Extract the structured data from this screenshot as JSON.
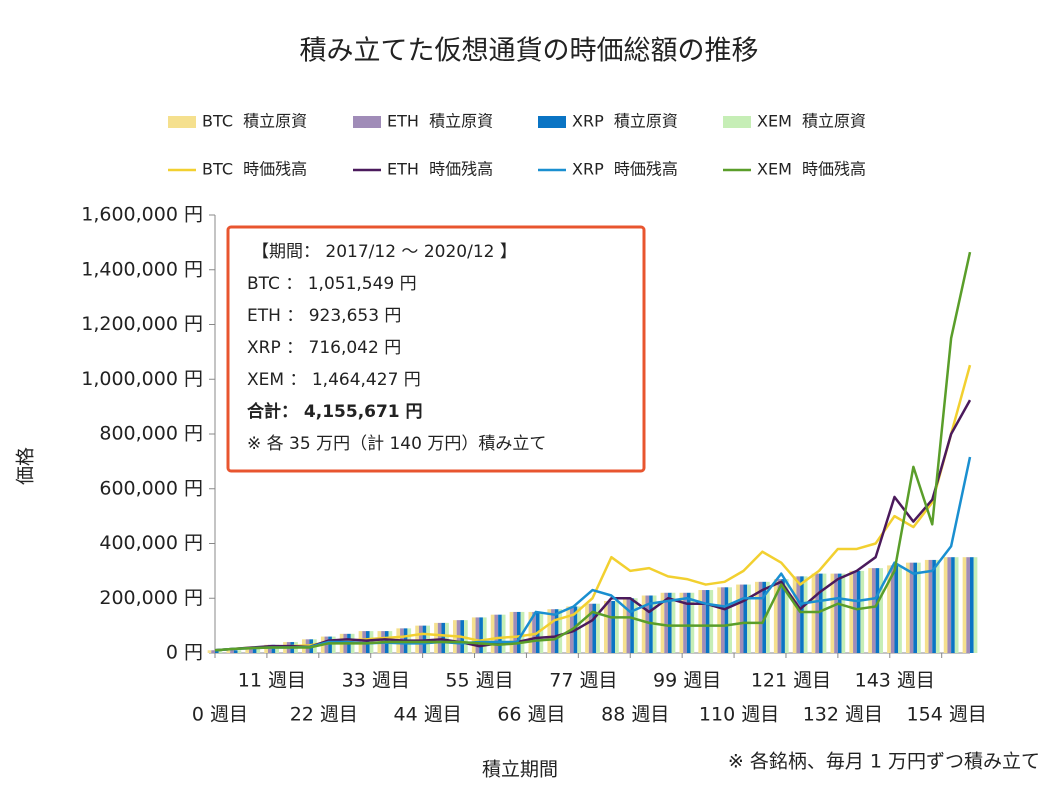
{
  "chart_data": {
    "type": "combo",
    "title": "積み立てた仮想通貨の時価総額の推移",
    "y_label": "価格",
    "x_label": "積立期間",
    "note": "※ 各銘柄、毎月 1 万円ずつ積み立て",
    "annotations": [
      "【期間： 2017/12 ～ 2020/12 】",
      "BTC ： 1,051,549 円",
      "ETH ： 923,653 円",
      "XRP ： 716,042 円",
      "XEM ： 1,464,427 円",
      "合計： 4,155,671 円",
      "※ 各 35 万円（計 140 万円）積み立て"
    ],
    "x": [
      0,
      4,
      8,
      12,
      16,
      20,
      24,
      28,
      32,
      36,
      40,
      44,
      48,
      52,
      56,
      60,
      64,
      68,
      72,
      76,
      80,
      84,
      88,
      92,
      96,
      100,
      104,
      108,
      112,
      116,
      120,
      124,
      128,
      132,
      136,
      140,
      144,
      148,
      152,
      156,
      160
    ],
    "xlim": [
      0,
      160
    ],
    "xticks": [
      {
        "value": 0,
        "label": "0 週目"
      },
      {
        "value": 11,
        "label": "11 週目"
      },
      {
        "value": 22,
        "label": "22 週目"
      },
      {
        "value": 33,
        "label": "33 週目"
      },
      {
        "value": 44,
        "label": "44 週目"
      },
      {
        "value": 55,
        "label": "55 週目"
      },
      {
        "value": 66,
        "label": "66 週目"
      },
      {
        "value": 77,
        "label": "77 週目"
      },
      {
        "value": 88,
        "label": "88 週目"
      },
      {
        "value": 99,
        "label": "99 週目"
      },
      {
        "value": 110,
        "label": "110 週目"
      },
      {
        "value": 121,
        "label": "121 週目"
      },
      {
        "value": 132,
        "label": "132 週目"
      },
      {
        "value": 143,
        "label": "143 週目"
      },
      {
        "value": 154,
        "label": "154 週目"
      }
    ],
    "ylim": [
      0,
      1600000
    ],
    "yticks": [
      {
        "value": 0,
        "label": "0 円"
      },
      {
        "value": 200000,
        "label": "200,000 円"
      },
      {
        "value": 400000,
        "label": "400,000 円"
      },
      {
        "value": 600000,
        "label": "600,000 円"
      },
      {
        "value": 800000,
        "label": "800,000 円"
      },
      {
        "value": 1000000,
        "label": "1,000,000 円"
      },
      {
        "value": 1200000,
        "label": "1,200,000 円"
      },
      {
        "value": 1400000,
        "label": "1,400,000 円"
      },
      {
        "value": 1600000,
        "label": "1,600,000 円"
      }
    ],
    "series": [
      {
        "name": "BTC  積立原資",
        "type": "bar",
        "color": "#f5e08e",
        "values": [
          10000,
          10000,
          20000,
          30000,
          40000,
          50000,
          60000,
          70000,
          80000,
          80000,
          90000,
          100000,
          110000,
          120000,
          130000,
          140000,
          150000,
          150000,
          160000,
          170000,
          180000,
          190000,
          200000,
          210000,
          220000,
          220000,
          230000,
          240000,
          250000,
          260000,
          270000,
          280000,
          290000,
          290000,
          300000,
          310000,
          320000,
          330000,
          340000,
          350000,
          350000
        ]
      },
      {
        "name": "ETH  積立原資",
        "type": "bar",
        "color": "#a08cb8",
        "values": [
          10000,
          10000,
          20000,
          30000,
          40000,
          50000,
          60000,
          70000,
          80000,
          80000,
          90000,
          100000,
          110000,
          120000,
          130000,
          140000,
          150000,
          150000,
          160000,
          170000,
          180000,
          190000,
          200000,
          210000,
          220000,
          220000,
          230000,
          240000,
          250000,
          260000,
          270000,
          280000,
          290000,
          290000,
          300000,
          310000,
          320000,
          330000,
          340000,
          350000,
          350000
        ]
      },
      {
        "name": "XRP  積立原資",
        "type": "bar",
        "color": "#0a74c4",
        "values": [
          10000,
          10000,
          20000,
          30000,
          40000,
          50000,
          60000,
          70000,
          80000,
          80000,
          90000,
          100000,
          110000,
          120000,
          130000,
          140000,
          150000,
          150000,
          160000,
          170000,
          180000,
          190000,
          200000,
          210000,
          220000,
          220000,
          230000,
          240000,
          250000,
          260000,
          270000,
          280000,
          290000,
          290000,
          300000,
          310000,
          320000,
          330000,
          340000,
          350000,
          350000
        ]
      },
      {
        "name": "XEM  積立原資",
        "type": "bar",
        "color": "#c6eeb6",
        "values": [
          10000,
          10000,
          20000,
          30000,
          40000,
          50000,
          60000,
          70000,
          80000,
          80000,
          90000,
          100000,
          110000,
          120000,
          130000,
          140000,
          150000,
          150000,
          160000,
          170000,
          180000,
          190000,
          200000,
          210000,
          220000,
          220000,
          230000,
          240000,
          250000,
          260000,
          270000,
          280000,
          290000,
          290000,
          300000,
          310000,
          320000,
          330000,
          340000,
          350000,
          350000
        ]
      },
      {
        "name": "BTC  時価残高",
        "type": "line",
        "color": "#f2d030",
        "values": [
          10000,
          15000,
          20000,
          22000,
          25000,
          28000,
          40000,
          45000,
          50000,
          55000,
          60000,
          70000,
          65000,
          60000,
          45000,
          55000,
          60000,
          70000,
          120000,
          140000,
          200000,
          350000,
          300000,
          310000,
          280000,
          270000,
          250000,
          260000,
          300000,
          370000,
          330000,
          250000,
          300000,
          380000,
          380000,
          400000,
          500000,
          460000,
          550000,
          800000,
          1051549
        ]
      },
      {
        "name": "ETH  時価残高",
        "type": "line",
        "color": "#4b1a5c",
        "values": [
          10000,
          15000,
          20000,
          25000,
          25000,
          22000,
          45000,
          50000,
          45000,
          50000,
          45000,
          45000,
          50000,
          40000,
          25000,
          35000,
          40000,
          55000,
          60000,
          80000,
          120000,
          200000,
          200000,
          150000,
          200000,
          180000,
          180000,
          160000,
          190000,
          230000,
          260000,
          160000,
          220000,
          270000,
          300000,
          350000,
          570000,
          480000,
          560000,
          800000,
          923653
        ]
      },
      {
        "name": "XRP  時価残高",
        "type": "line",
        "color": "#1a8fd0",
        "values": [
          10000,
          15000,
          18000,
          20000,
          20000,
          22000,
          40000,
          40000,
          35000,
          38000,
          35000,
          35000,
          40000,
          35000,
          40000,
          40000,
          40000,
          150000,
          140000,
          170000,
          230000,
          210000,
          150000,
          180000,
          190000,
          200000,
          180000,
          170000,
          200000,
          200000,
          290000,
          180000,
          190000,
          200000,
          190000,
          200000,
          330000,
          290000,
          300000,
          390000,
          716042
        ]
      },
      {
        "name": "XEM  時価残高",
        "type": "line",
        "color": "#5a9e2a",
        "values": [
          10000,
          15000,
          18000,
          20000,
          20000,
          20000,
          35000,
          35000,
          35000,
          40000,
          40000,
          40000,
          40000,
          40000,
          35000,
          30000,
          35000,
          45000,
          50000,
          90000,
          150000,
          130000,
          130000,
          110000,
          100000,
          100000,
          100000,
          100000,
          110000,
          110000,
          250000,
          150000,
          150000,
          180000,
          160000,
          170000,
          300000,
          680000,
          470000,
          1150000,
          1464427
        ]
      }
    ]
  }
}
